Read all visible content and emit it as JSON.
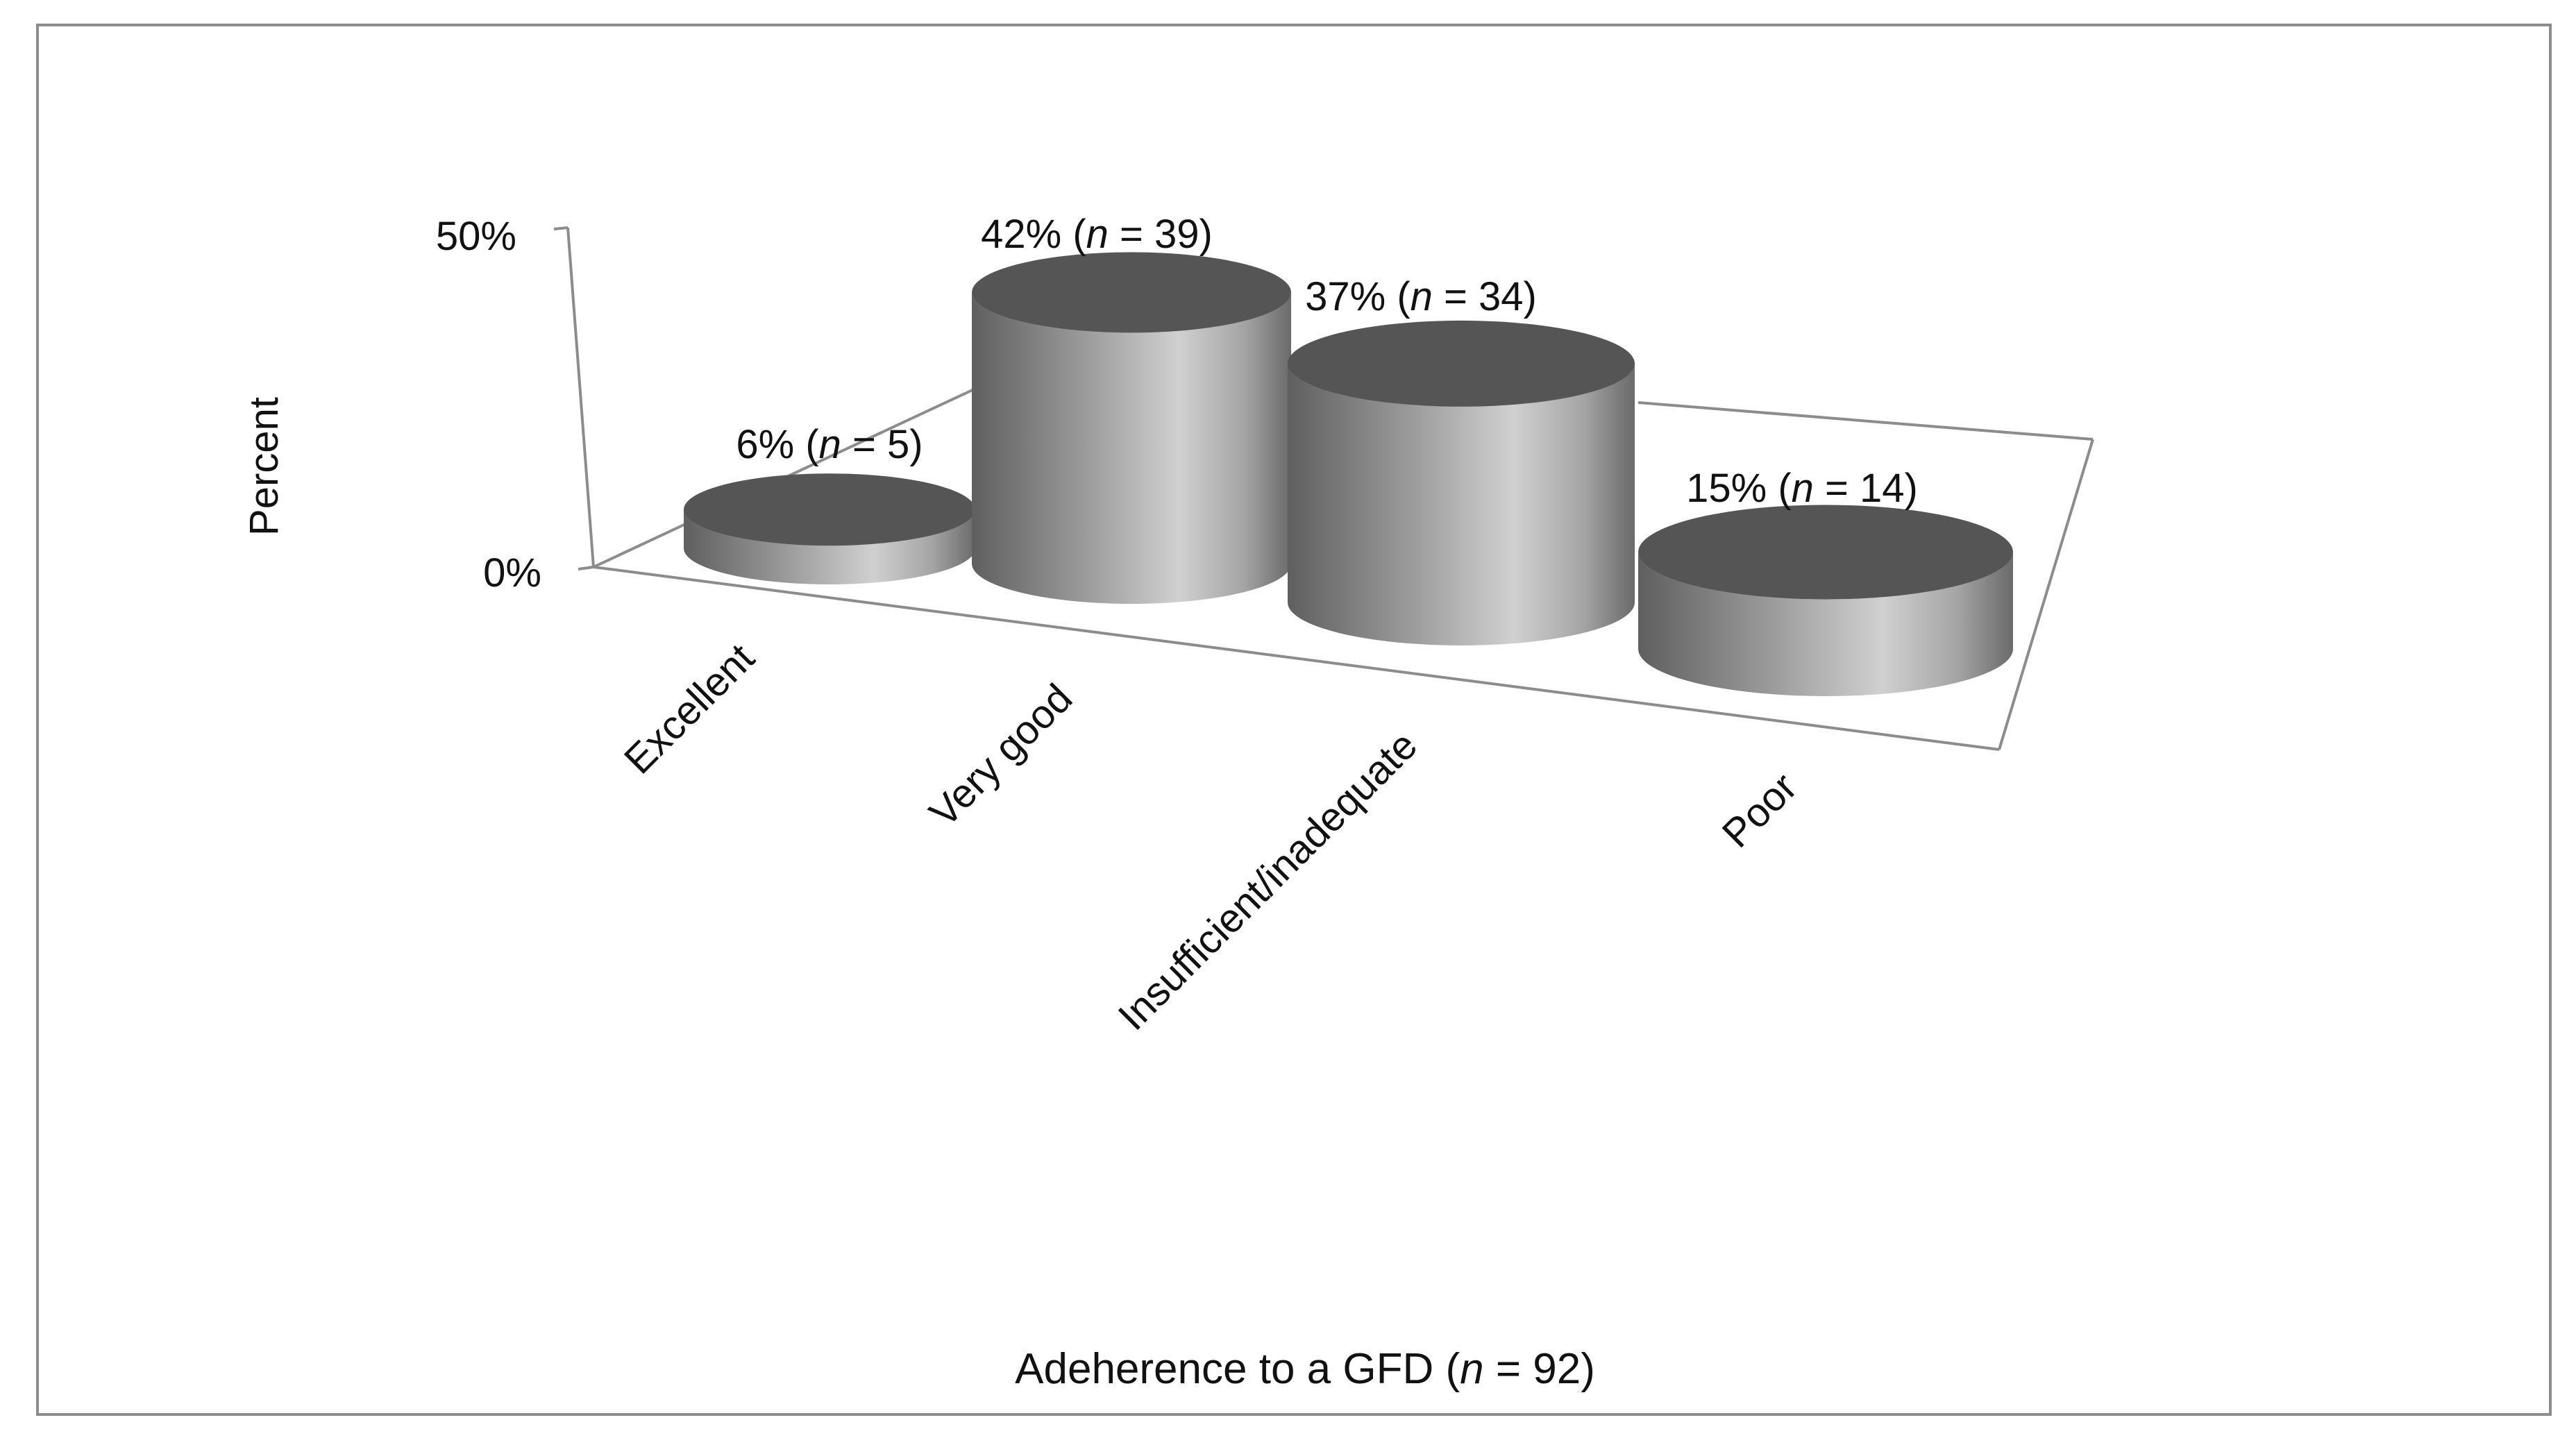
{
  "chart_data": {
    "type": "bar",
    "style": "3d-cylinder",
    "categories": [
      "Excellent",
      "Very good",
      "Insufficient/inadequate",
      "Poor"
    ],
    "values": [
      6,
      42,
      37,
      15
    ],
    "counts": [
      5,
      39,
      34,
      14
    ],
    "data_labels": [
      {
        "pct": "6% (",
        "n": "n",
        "rest": " = 5)"
      },
      {
        "pct": "42% (",
        "n": "n",
        "rest": " = 39)"
      },
      {
        "pct": "37% (",
        "n": "n",
        "rest": " = 34)"
      },
      {
        "pct": "15% (",
        "n": "n",
        "rest": " = 14)"
      }
    ],
    "ylabel": "Percent",
    "xlabel": {
      "prefix": "Adeherence to a GFD (",
      "n": "n",
      "suffix": " = 92)"
    },
    "y_ticks": [
      "0%",
      "50%"
    ],
    "ylim": [
      0,
      50
    ],
    "grid": false,
    "legend": "none",
    "colors": {
      "bar_light": "#cfcfcf",
      "bar_mid": "#9a9a9a",
      "bar_dark": "#5f5f5f",
      "top_face": "#555555",
      "axis": "#8c8c8c",
      "frame": "#8c8c8c"
    }
  }
}
